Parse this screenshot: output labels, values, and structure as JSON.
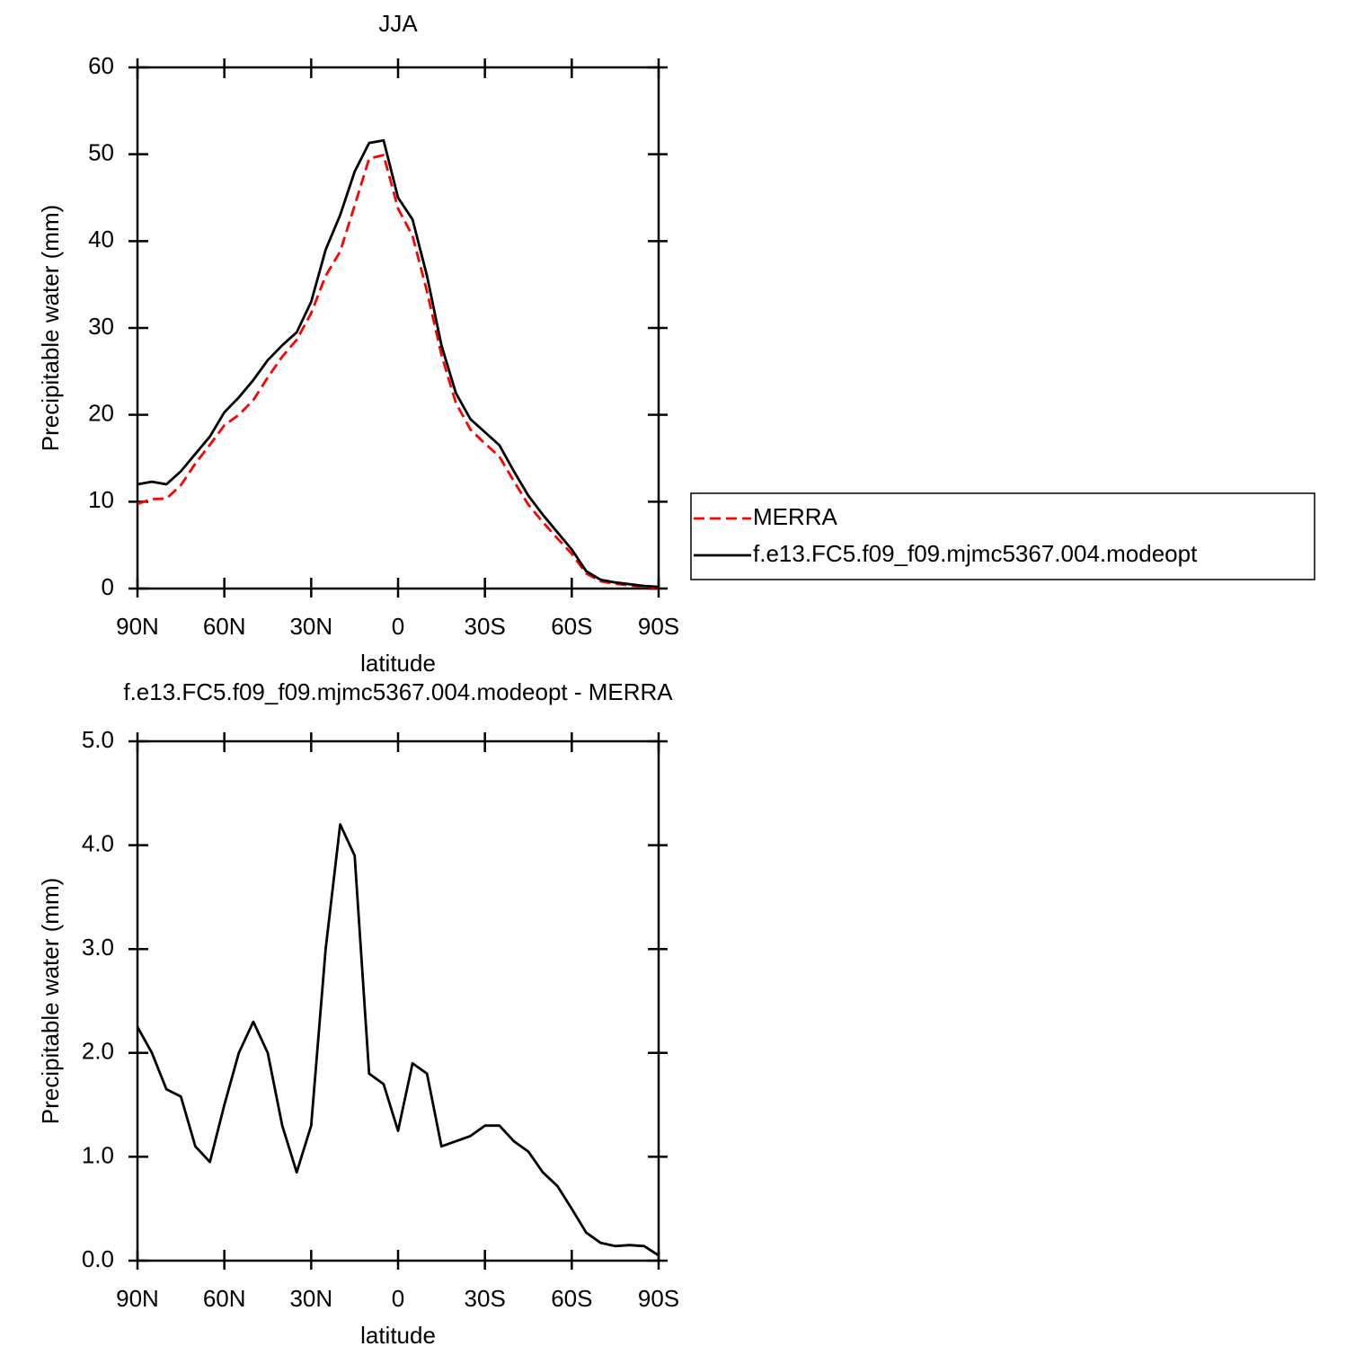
{
  "chart_data": [
    {
      "type": "line",
      "title": "JJA",
      "xlabel": "latitude",
      "ylabel": "Precipitable water (mm)",
      "x": [
        90,
        85,
        80,
        75,
        70,
        65,
        60,
        55,
        50,
        45,
        40,
        35,
        30,
        25,
        20,
        15,
        10,
        5,
        0,
        -5,
        -10,
        -15,
        -20,
        -25,
        -30,
        -35,
        -40,
        -45,
        -50,
        -55,
        -60,
        -65,
        -70,
        -75,
        -80,
        -85,
        -90
      ],
      "xlim": [
        90,
        -90
      ],
      "xticks": [
        {
          "value": 90,
          "label": "90N"
        },
        {
          "value": 60,
          "label": "60N"
        },
        {
          "value": 30,
          "label": "30N"
        },
        0,
        {
          "value": -30,
          "label": "30S"
        },
        {
          "value": -60,
          "label": "60S"
        },
        {
          "value": -90,
          "label": "90S"
        }
      ],
      "ylim": [
        0,
        60
      ],
      "yticks": [
        0,
        10,
        20,
        30,
        40,
        50,
        60
      ],
      "series": [
        {
          "name": "MERRA",
          "color": "#ff0000",
          "dashed": true,
          "values": [
            9.75,
            10.3,
            10.35,
            11.9,
            14.4,
            16.55,
            18.8,
            20,
            21.7,
            24.3,
            26.7,
            28.65,
            31.7,
            36,
            38.8,
            44.1,
            49.5,
            49.9,
            43.75,
            40.6,
            34.2,
            26.9,
            21.35,
            18.3,
            16.7,
            15.2,
            12.35,
            9.65,
            7.65,
            5.78,
            4.0,
            1.73,
            0.83,
            0.56,
            0.35,
            0.16,
            0.15
          ]
        },
        {
          "name": "f.e13.FC5.f09_f09.mjmc5367.004.modeopt",
          "color": "#000000",
          "dashed": false,
          "values": [
            12,
            12.3,
            12,
            13.5,
            15.5,
            17.5,
            20.3,
            22,
            24,
            26.3,
            28,
            29.5,
            33,
            39,
            43,
            48,
            51.3,
            51.6,
            45,
            42.5,
            36,
            28,
            22.5,
            19.5,
            18,
            16.5,
            13.5,
            10.7,
            8.5,
            6.5,
            4.5,
            2,
            1,
            0.7,
            0.5,
            0.3,
            0.2
          ]
        }
      ]
    },
    {
      "type": "line",
      "title": "f.e13.FC5.f09_f09.mjmc5367.004.modeopt - MERRA",
      "xlabel": "latitude",
      "ylabel": "Precipitable water (mm)",
      "x": [
        90,
        85,
        80,
        75,
        70,
        65,
        60,
        55,
        50,
        45,
        40,
        35,
        30,
        25,
        20,
        15,
        10,
        5,
        0,
        -5,
        -10,
        -15,
        -20,
        -25,
        -30,
        -35,
        -40,
        -45,
        -50,
        -55,
        -60,
        -65,
        -70,
        -75,
        -80,
        -85,
        -90
      ],
      "xlim": [
        90,
        -90
      ],
      "xticks": [
        {
          "value": 90,
          "label": "90N"
        },
        {
          "value": 60,
          "label": "60N"
        },
        {
          "value": 30,
          "label": "30N"
        },
        0,
        {
          "value": -30,
          "label": "30S"
        },
        {
          "value": -60,
          "label": "60S"
        },
        {
          "value": -90,
          "label": "90S"
        }
      ],
      "ylim": [
        0,
        5
      ],
      "yticks": [
        {
          "value": 0,
          "label": "0.0"
        },
        {
          "value": 1,
          "label": "1.0"
        },
        {
          "value": 2,
          "label": "2.0"
        },
        {
          "value": 3,
          "label": "3.0"
        },
        {
          "value": 4,
          "label": "4.0"
        },
        {
          "value": 5,
          "label": "5.0"
        }
      ],
      "series": [
        {
          "color": "#000000",
          "dashed": false,
          "values": [
            2.25,
            2.0,
            1.65,
            1.58,
            1.1,
            0.95,
            1.5,
            2.0,
            2.3,
            2.0,
            1.3,
            0.85,
            1.3,
            3.0,
            4.2,
            3.9,
            1.8,
            1.7,
            1.25,
            1.9,
            1.8,
            1.1,
            1.15,
            1.2,
            1.3,
            1.3,
            1.15,
            1.05,
            0.85,
            0.72,
            0.5,
            0.27,
            0.17,
            0.14,
            0.15,
            0.14,
            0.05
          ]
        }
      ]
    }
  ]
}
